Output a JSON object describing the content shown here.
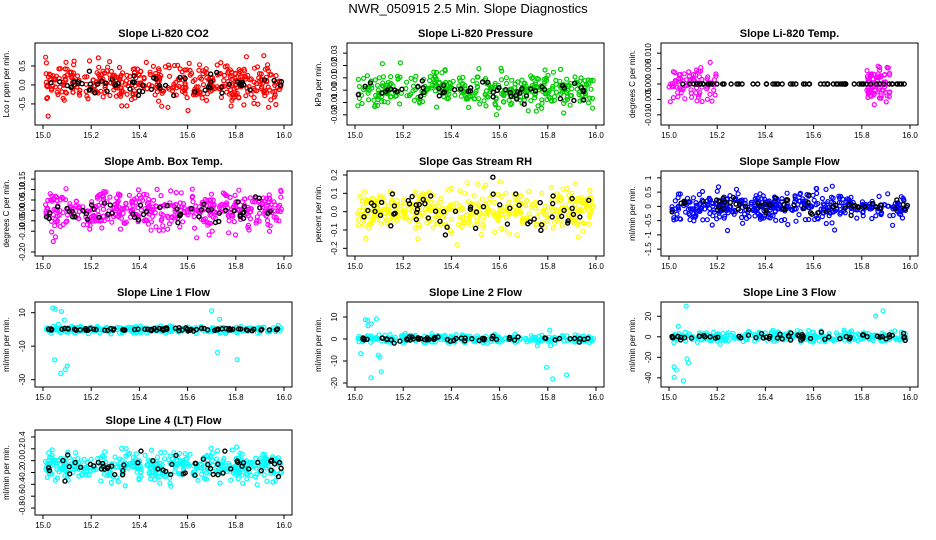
{
  "page_title": "NWR_050915  2.5 Min. Slope Diagnostics",
  "chart_data": [
    {
      "type": "scatter",
      "title": "Slope Li-820 CO2",
      "ylabel": "Lco r ppm per min.",
      "xlim": [
        15.0,
        16.0
      ],
      "xticks": [
        15.0,
        15.2,
        15.4,
        15.6,
        15.8,
        16.0
      ],
      "xtick_labels": [
        "15.0",
        "15.2",
        "15.4",
        "15.6",
        "15.8",
        "16.0"
      ],
      "ylim": [
        -0.95,
        1.0
      ],
      "yticks": [
        -0.5,
        0.0,
        0.5
      ],
      "ytick_labels": [
        "-0.5",
        "0.0",
        "0.5"
      ],
      "color": "#ff0000",
      "marker_color": "#000000",
      "series": [
        {
          "name": "fill",
          "color": "#ff0000",
          "center": 0.05,
          "spread": 0.25,
          "n": 420
        },
        {
          "name": "marker",
          "color": "#000000",
          "center": 0.0,
          "spread": 0.15,
          "n": 60
        }
      ]
    },
    {
      "type": "scatter",
      "title": "Slope Li-820 Pressure",
      "ylabel": "kPa per min.",
      "xlim": [
        15.0,
        16.0
      ],
      "xticks": [
        15.0,
        15.2,
        15.4,
        15.6,
        15.8,
        16.0
      ],
      "xtick_labels": [
        "15.0",
        "15.2",
        "15.4",
        "15.6",
        "15.8",
        "16.0"
      ],
      "ylim": [
        -0.025,
        0.035
      ],
      "yticks": [
        -0.02,
        -0.01,
        0.0,
        0.01,
        0.02,
        0.03
      ],
      "ytick_labels": [
        "-0.02",
        "-0.01",
        "0.00",
        "0.01",
        "0.02",
        "0.03"
      ],
      "color": "#00cc00",
      "series": [
        {
          "name": "fill",
          "color": "#00cc00",
          "center": 0.0,
          "spread": 0.007,
          "n": 380
        },
        {
          "name": "marker",
          "color": "#000000",
          "center": 0.0,
          "spread": 0.004,
          "n": 55
        }
      ]
    },
    {
      "type": "scatter",
      "title": "Slope Li-820 Temp.",
      "ylabel": "degrees C per min.",
      "xlim": [
        15.0,
        16.0
      ],
      "xticks": [
        15.0,
        15.2,
        15.4,
        15.6,
        15.8,
        16.0
      ],
      "xtick_labels": [
        "15.0",
        "15.2",
        "15.4",
        "15.6",
        "15.8",
        "16.0"
      ],
      "ylim": [
        -0.012,
        0.012
      ],
      "yticks": [
        -0.01,
        -0.005,
        0.0,
        0.005,
        0.01
      ],
      "ytick_labels": [
        "-0.010",
        "-0.005",
        "0.000",
        "0.005",
        "0.010"
      ],
      "color": "#ff00ff",
      "series": [
        {
          "name": "fill",
          "color": "#ff00ff",
          "center": 0.0,
          "spread": 0.003,
          "n": 150
        },
        {
          "name": "marker",
          "color": "#000000",
          "center": 0.0,
          "spread": 0.0,
          "n": 70
        }
      ]
    },
    {
      "type": "scatter",
      "title": "Slope Amb. Box Temp.",
      "ylabel": "degrees C per min.",
      "xlim": [
        15.0,
        16.0
      ],
      "xticks": [
        15.0,
        15.2,
        15.4,
        15.6,
        15.8,
        16.0
      ],
      "xtick_labels": [
        "15.0",
        "15.2",
        "15.4",
        "15.6",
        "15.8",
        "16.0"
      ],
      "ylim": [
        -0.2,
        0.17
      ],
      "yticks": [
        -0.2,
        -0.1,
        -0.05,
        0.0,
        0.05,
        0.1,
        0.15
      ],
      "ytick_labels": [
        "-0.20",
        "-0.10",
        "-0.05",
        "0.00",
        "0.05",
        "0.10",
        "0.15"
      ],
      "color": "#ff00ff",
      "series": [
        {
          "name": "fill",
          "color": "#ff00ff",
          "center": 0.0,
          "spread": 0.045,
          "n": 420
        },
        {
          "name": "marker",
          "color": "#000000",
          "center": 0.0,
          "spread": 0.025,
          "n": 55
        }
      ]
    },
    {
      "type": "scatter",
      "title": "Slope Gas Stream RH",
      "ylabel": "percent per min.",
      "xlim": [
        15.0,
        16.0
      ],
      "xticks": [
        15.0,
        15.2,
        15.4,
        15.6,
        15.8,
        16.0
      ],
      "xtick_labels": [
        "15.0",
        "15.2",
        "15.4",
        "15.6",
        "15.8",
        "16.0"
      ],
      "ylim": [
        -0.22,
        0.2
      ],
      "yticks": [
        -0.2,
        -0.1,
        0.0,
        0.1,
        0.2
      ],
      "ytick_labels": [
        "-0.2",
        "-0.1",
        "0.0",
        "0.1",
        "0.2"
      ],
      "color": "#ffff00",
      "series": [
        {
          "name": "fill",
          "color": "#ffff00",
          "center": 0.0,
          "spread": 0.06,
          "n": 420
        },
        {
          "name": "marker",
          "color": "#000000",
          "center": 0.0,
          "spread": 0.06,
          "n": 60
        }
      ]
    },
    {
      "type": "scatter",
      "title": "Slope Sample Flow",
      "ylabel": "ml/min per min.",
      "xlim": [
        15.0,
        16.0
      ],
      "xticks": [
        15.0,
        15.2,
        15.4,
        15.6,
        15.8,
        16.0
      ],
      "xtick_labels": [
        "15.0",
        "15.2",
        "15.4",
        "15.6",
        "15.8",
        "16.0"
      ],
      "ylim": [
        -1.6,
        1.1
      ],
      "yticks": [
        -1.5,
        -1.0,
        -0.5,
        0.0,
        0.5,
        1.0
      ],
      "ytick_labels": [
        "-1.5",
        "-1",
        "-0.5",
        "0",
        "0.5",
        "1"
      ],
      "color": "#0000ff",
      "series": [
        {
          "name": "fill",
          "color": "#0000ff",
          "center": 0.0,
          "spread": 0.25,
          "n": 420
        },
        {
          "name": "marker",
          "color": "#000000",
          "center": 0.0,
          "spread": 0.15,
          "n": 60
        }
      ]
    },
    {
      "type": "scatter",
      "title": "Slope Line 1 Flow",
      "ylabel": "ml/min per min.",
      "xlim": [
        15.0,
        16.0
      ],
      "xticks": [
        15.0,
        15.2,
        15.4,
        15.6,
        15.8,
        16.0
      ],
      "xtick_labels": [
        "15.0",
        "15.2",
        "15.4",
        "15.6",
        "15.8",
        "16.0"
      ],
      "ylim": [
        -32,
        14
      ],
      "yticks": [
        -30,
        -10,
        10
      ],
      "ytick_labels": [
        "-30",
        "-10",
        "10"
      ],
      "color": "#00ffff",
      "series": [
        {
          "name": "fill",
          "color": "#00ffff",
          "center": 0.0,
          "spread": 1.0,
          "n": 300
        },
        {
          "name": "marker",
          "color": "#000000",
          "center": 0.0,
          "spread": 0.4,
          "n": 80
        }
      ]
    },
    {
      "type": "scatter",
      "title": "Slope Line 2 Flow",
      "ylabel": "ml/min per min.",
      "xlim": [
        15.0,
        16.0
      ],
      "xticks": [
        15.0,
        15.2,
        15.4,
        15.6,
        15.8,
        16.0
      ],
      "xtick_labels": [
        "15.0",
        "15.2",
        "15.4",
        "15.6",
        "15.8",
        "16.0"
      ],
      "ylim": [
        -20,
        15
      ],
      "yticks": [
        -20,
        -10,
        0,
        10
      ],
      "ytick_labels": [
        "-20",
        "-10",
        "0",
        "10"
      ],
      "color": "#00ffff",
      "series": [
        {
          "name": "fill",
          "color": "#00ffff",
          "center": 0.0,
          "spread": 1.0,
          "n": 300
        },
        {
          "name": "marker",
          "color": "#000000",
          "center": 0.0,
          "spread": 0.6,
          "n": 60
        }
      ]
    },
    {
      "type": "scatter",
      "title": "Slope Line 3 Flow",
      "ylabel": "ml/min per min.",
      "xlim": [
        15.0,
        16.0
      ],
      "xticks": [
        15.0,
        15.2,
        15.4,
        15.6,
        15.8,
        16.0
      ],
      "xtick_labels": [
        "15.0",
        "15.2",
        "15.4",
        "15.6",
        "15.8",
        "16.0"
      ],
      "ylim": [
        -45,
        30
      ],
      "yticks": [
        -40,
        -20,
        0,
        20
      ],
      "ytick_labels": [
        "-40",
        "-20",
        "0",
        "20"
      ],
      "color": "#00ffff",
      "series": [
        {
          "name": "fill",
          "color": "#00ffff",
          "center": 0.0,
          "spread": 2.5,
          "n": 300
        },
        {
          "name": "marker",
          "color": "#000000",
          "center": 0.0,
          "spread": 1.5,
          "n": 60
        }
      ]
    },
    {
      "type": "scatter",
      "title": "Slope Line 4 (LT) Flow",
      "ylabel": "ml/min per min.",
      "xlim": [
        15.0,
        16.0
      ],
      "xticks": [
        15.0,
        15.2,
        15.4,
        15.6,
        15.8,
        16.0
      ],
      "xtick_labels": [
        "15.0",
        "15.2",
        "15.4",
        "15.6",
        "15.8",
        "16.0"
      ],
      "ylim": [
        -0.85,
        0.45
      ],
      "yticks": [
        -0.8,
        -0.6,
        -0.4,
        -0.2,
        0.0,
        0.2,
        0.4
      ],
      "ytick_labels": [
        "-0.8",
        "-0.6",
        "-0.4",
        "-0.2",
        "0.0",
        "0.2",
        "0.4"
      ],
      "color": "#00ffff",
      "series": [
        {
          "name": "fill",
          "color": "#00ffff",
          "center": -0.1,
          "spread": 0.12,
          "n": 420
        },
        {
          "name": "marker",
          "color": "#000000",
          "center": -0.1,
          "spread": 0.1,
          "n": 60
        }
      ]
    }
  ]
}
